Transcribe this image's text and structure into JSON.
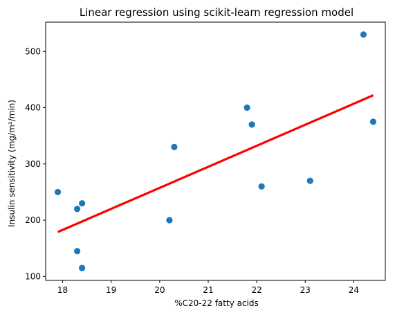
{
  "chart_data": {
    "type": "scatter",
    "title": "Linear regression using scikit-learn regression model",
    "xlabel": "%C20-22 fatty acids",
    "ylabel": "Insulin sensitivity (mg/m²/min)",
    "xlim": [
      17.65,
      24.65
    ],
    "ylim": [
      93,
      552
    ],
    "x_ticks": [
      18,
      19,
      20,
      21,
      22,
      23,
      24
    ],
    "y_ticks": [
      100,
      200,
      300,
      400,
      500
    ],
    "grid": false,
    "points": [
      {
        "x": 17.9,
        "y": 250
      },
      {
        "x": 18.3,
        "y": 220
      },
      {
        "x": 18.3,
        "y": 145
      },
      {
        "x": 18.4,
        "y": 230
      },
      {
        "x": 18.4,
        "y": 115
      },
      {
        "x": 20.2,
        "y": 200
      },
      {
        "x": 20.3,
        "y": 330
      },
      {
        "x": 21.8,
        "y": 400
      },
      {
        "x": 21.9,
        "y": 370
      },
      {
        "x": 22.1,
        "y": 260
      },
      {
        "x": 23.1,
        "y": 270
      },
      {
        "x": 24.2,
        "y": 530
      },
      {
        "x": 24.4,
        "y": 375
      }
    ],
    "regression_line": {
      "x": [
        17.9,
        24.4
      ],
      "y": [
        179,
        422
      ]
    },
    "colors": {
      "points": "#1f77b4",
      "line": "#ff0000",
      "axes": "#000000"
    }
  }
}
